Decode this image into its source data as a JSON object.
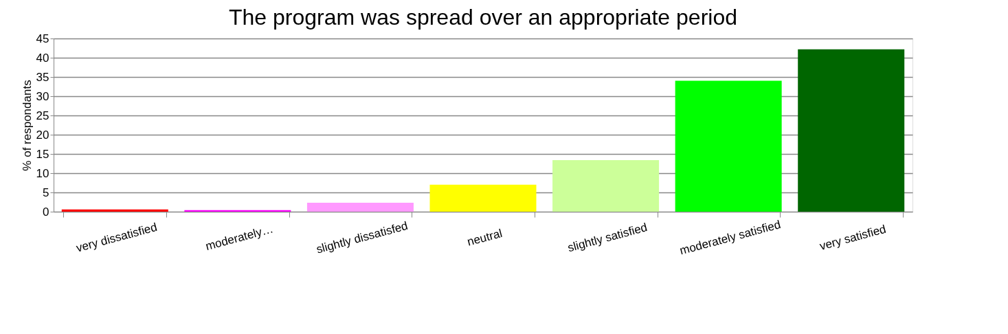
{
  "chart_data": {
    "type": "bar",
    "title": "The program was spread over an appropriate period",
    "ylabel": "% of respondants",
    "categories": [
      "very dissatisfied",
      "moderately…",
      "slightly dissatisfed",
      "neutral",
      "slightly satisfied",
      "moderately satisfied",
      "very satisfied"
    ],
    "values": [
      0.6,
      0.4,
      2.3,
      7.0,
      13.4,
      34.0,
      42.2
    ],
    "colors": [
      "#ff0000",
      "#ff00ff",
      "#ff99ff",
      "#ffff00",
      "#ccff99",
      "#00ff00",
      "#006600"
    ],
    "ylim": [
      0,
      45
    ],
    "yticks": [
      0,
      5,
      10,
      15,
      20,
      25,
      30,
      35,
      40,
      45
    ],
    "grid": "y",
    "legend": false
  }
}
